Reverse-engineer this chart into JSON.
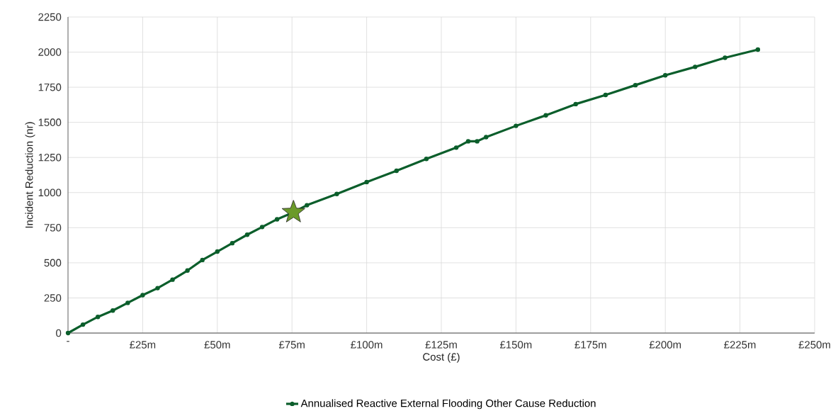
{
  "chart_data": {
    "type": "line",
    "xlabel": "Cost (£)",
    "ylabel": "Incident Reduction (nr)",
    "xlim": [
      0,
      250
    ],
    "ylim": [
      0,
      2250
    ],
    "xticks": [
      {
        "value": 0,
        "label": "-"
      },
      {
        "value": 25,
        "label": "£25m"
      },
      {
        "value": 50,
        "label": "£50m"
      },
      {
        "value": 75,
        "label": "£75m"
      },
      {
        "value": 100,
        "label": "£100m"
      },
      {
        "value": 125,
        "label": "£125m"
      },
      {
        "value": 150,
        "label": "£150m"
      },
      {
        "value": 175,
        "label": "£175m"
      },
      {
        "value": 200,
        "label": "£200m"
      },
      {
        "value": 225,
        "label": "£225m"
      },
      {
        "value": 250,
        "label": "£250m"
      }
    ],
    "yticks": [
      0,
      250,
      500,
      750,
      1000,
      1250,
      1500,
      1750,
      2000,
      2250
    ],
    "grid": true,
    "legend": "bottom",
    "series": [
      {
        "name": "Annualised Reactive External Flooding Other Cause Reduction",
        "color": "#0b5e2b",
        "marker": "circle",
        "x": [
          0,
          5,
          10,
          15,
          20,
          25,
          30,
          35,
          40,
          45,
          50,
          55,
          60,
          65,
          70,
          75,
          80,
          90,
          100,
          110,
          120,
          130,
          134,
          137,
          140,
          150,
          160,
          170,
          180,
          190,
          200,
          210,
          220,
          231
        ],
        "values": [
          0,
          60,
          115,
          160,
          215,
          270,
          320,
          380,
          445,
          520,
          580,
          640,
          700,
          755,
          810,
          855,
          910,
          990,
          1075,
          1155,
          1240,
          1320,
          1365,
          1365,
          1395,
          1475,
          1550,
          1630,
          1695,
          1765,
          1835,
          1895,
          1960,
          2018
        ]
      },
      {
        "type": "scatter",
        "color": "#6b9a2a",
        "marker": "star",
        "x": [
          75.5
        ],
        "values": [
          860
        ]
      }
    ]
  }
}
